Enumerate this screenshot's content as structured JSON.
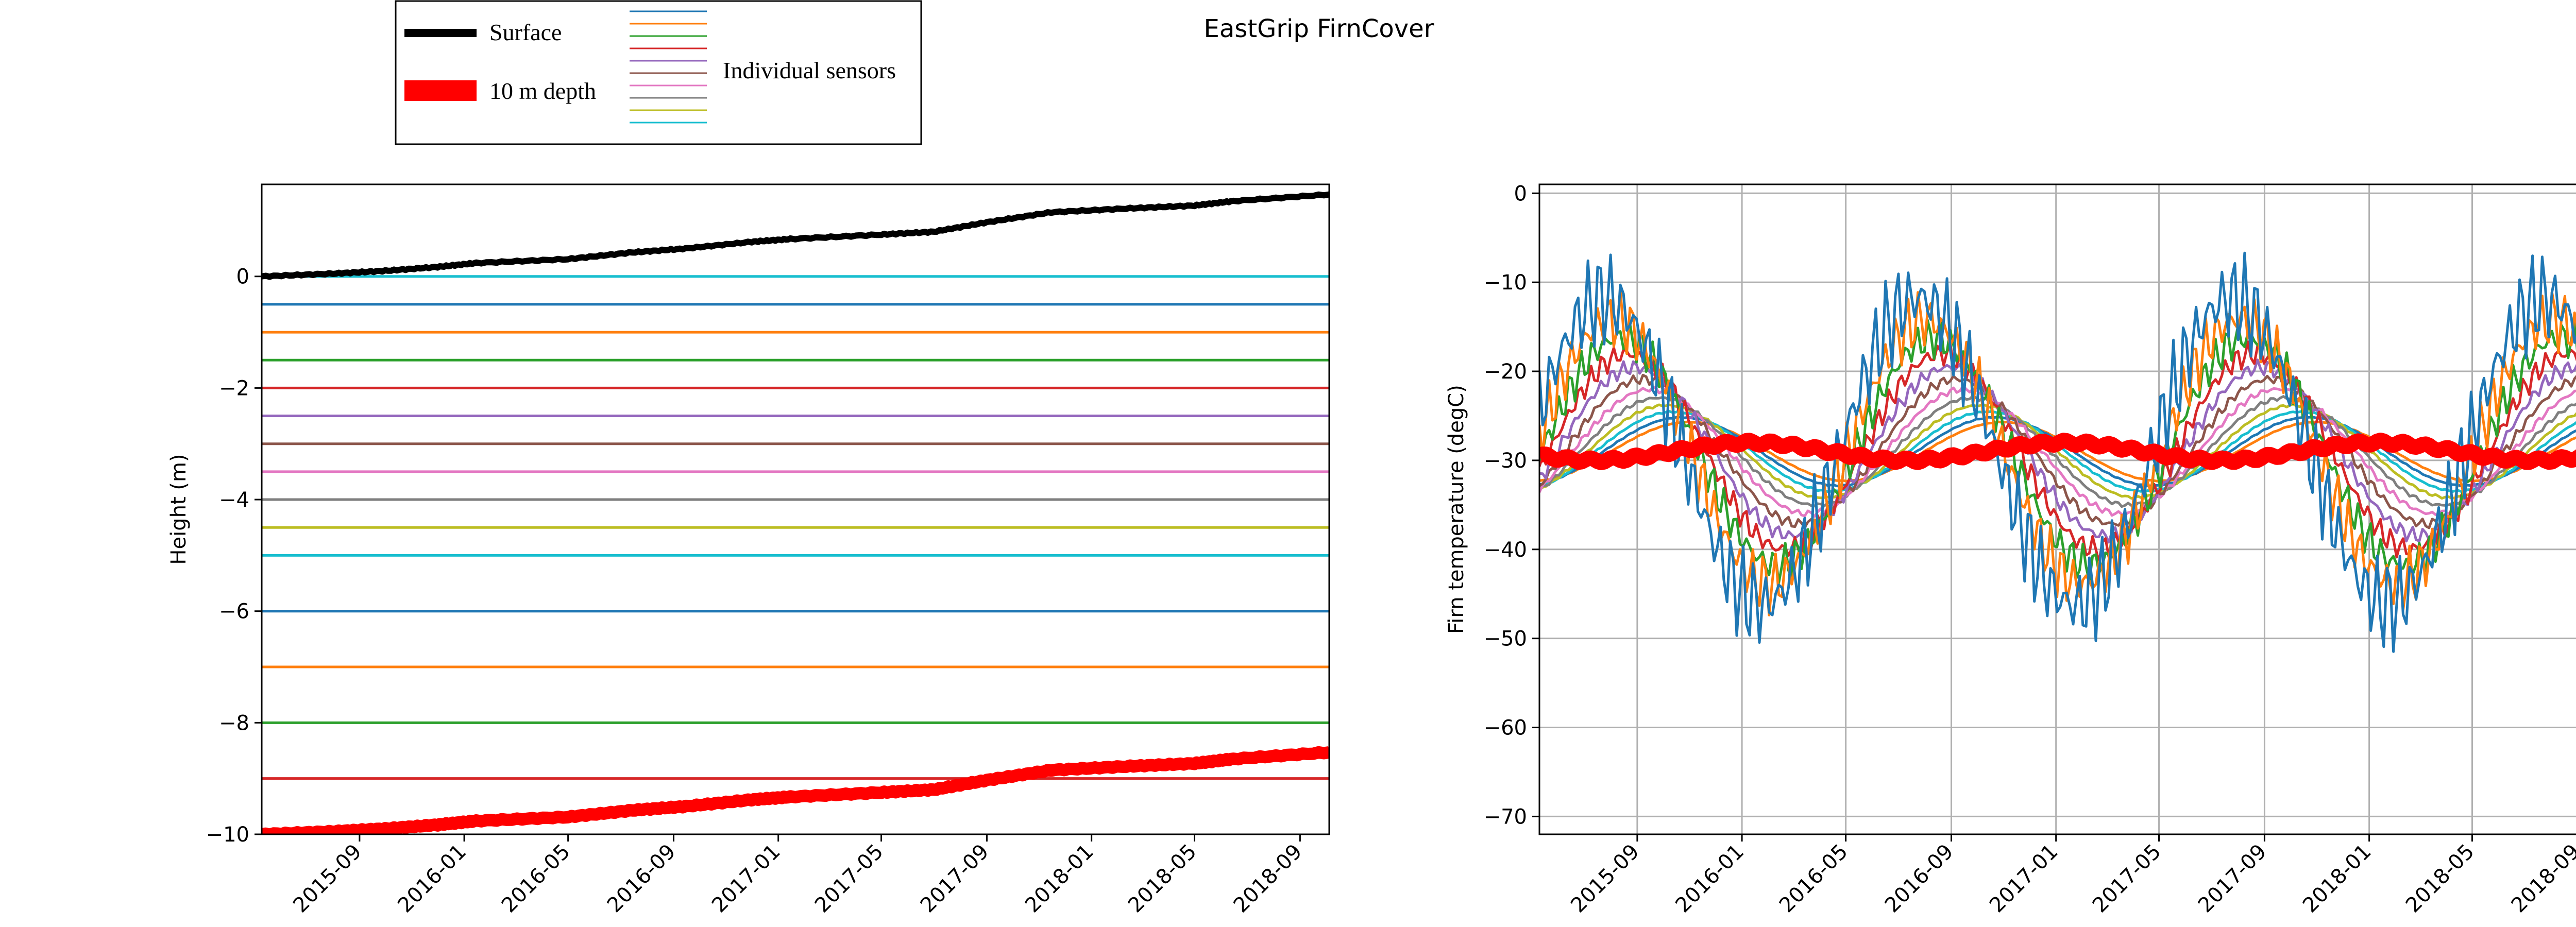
{
  "figure": {
    "title": "EastGrip FirnCover"
  },
  "legend": {
    "surface_label": "Surface",
    "depth_label": "10 m depth",
    "sensors_label": "Individual sensors",
    "surface_color": "#000000",
    "depth_color": "#ff0000",
    "sensor_colors": [
      "#1f77b4",
      "#ff7f0e",
      "#2ca02c",
      "#d62728",
      "#9467bd",
      "#8c564b",
      "#e377c2",
      "#7f7f7f",
      "#bcbd22",
      "#17becf"
    ]
  },
  "colors": {
    "grid": "#b0b0b0",
    "sensor_palette": [
      "#17becf",
      "#1f77b4",
      "#ff7f0e",
      "#2ca02c",
      "#d62728",
      "#9467bd",
      "#8c564b",
      "#e377c2",
      "#7f7f7f",
      "#bcbd22",
      "#17becf",
      "#1f77b4",
      "#ff7f0e",
      "#2ca02c",
      "#d62728"
    ]
  },
  "chart_data": [
    {
      "type": "line",
      "title": "",
      "xlabel": "",
      "ylabel": "Height (m)",
      "xlim": [
        "2015-05-10",
        "2018-10-05"
      ],
      "ylim": [
        -10,
        1.65
      ],
      "grid": false,
      "x_ticks": [
        "2015-09",
        "2016-01",
        "2016-05",
        "2016-09",
        "2017-01",
        "2017-05",
        "2017-09",
        "2018-01",
        "2018-05",
        "2018-09"
      ],
      "y_ticks": [
        -10,
        -8,
        -6,
        -4,
        -2,
        0
      ],
      "surface": {
        "name": "Surface",
        "points": [
          [
            "2015-05-10",
            0.0
          ],
          [
            "2015-08-01",
            0.05
          ],
          [
            "2015-10-01",
            0.1
          ],
          [
            "2015-12-01",
            0.17
          ],
          [
            "2016-01-15",
            0.24
          ],
          [
            "2016-05-01",
            0.31
          ],
          [
            "2016-07-15",
            0.43
          ],
          [
            "2016-09-15",
            0.5
          ],
          [
            "2016-12-01",
            0.62
          ],
          [
            "2017-01-15",
            0.67
          ],
          [
            "2017-05-01",
            0.75
          ],
          [
            "2017-07-01",
            0.8
          ],
          [
            "2017-09-01",
            0.97
          ],
          [
            "2017-11-15",
            1.15
          ],
          [
            "2018-02-15",
            1.22
          ],
          [
            "2018-05-01",
            1.27
          ],
          [
            "2018-06-15",
            1.35
          ],
          [
            "2018-10-05",
            1.47
          ]
        ]
      },
      "depth_10m": {
        "name": "10 m depth",
        "points": [
          [
            "2015-05-10",
            -10.0
          ],
          [
            "2015-08-01",
            -9.95
          ],
          [
            "2015-10-01",
            -9.9
          ],
          [
            "2015-12-01",
            -9.83
          ],
          [
            "2016-01-15",
            -9.76
          ],
          [
            "2016-05-01",
            -9.69
          ],
          [
            "2016-07-15",
            -9.57
          ],
          [
            "2016-09-15",
            -9.5
          ],
          [
            "2016-12-01",
            -9.38
          ],
          [
            "2017-01-15",
            -9.33
          ],
          [
            "2017-05-01",
            -9.25
          ],
          [
            "2017-07-01",
            -9.2
          ],
          [
            "2017-09-01",
            -9.03
          ],
          [
            "2017-11-15",
            -8.85
          ],
          [
            "2018-02-15",
            -8.78
          ],
          [
            "2018-05-01",
            -8.73
          ],
          [
            "2018-06-15",
            -8.65
          ],
          [
            "2018-10-05",
            -8.53
          ]
        ]
      },
      "sensor_depths": [
        0,
        -0.5,
        -1.0,
        -1.5,
        -2.0,
        -2.5,
        -3.0,
        -3.5,
        -4.0,
        -4.5,
        -5.0,
        -6.0,
        -7.0,
        -8.0,
        -9.0
      ]
    },
    {
      "type": "line",
      "title": "",
      "xlabel": "",
      "ylabel": "Firn temperature (degC)",
      "xlim": [
        "2015-05-10",
        "2018-10-05"
      ],
      "ylim": [
        -72,
        1
      ],
      "grid": true,
      "x_ticks": [
        "2015-09",
        "2016-01",
        "2016-05",
        "2016-09",
        "2017-01",
        "2017-05",
        "2017-09",
        "2018-01",
        "2018-05",
        "2018-09"
      ],
      "y_ticks": [
        -70,
        -60,
        -50,
        -40,
        -30,
        -20,
        -10,
        0
      ],
      "series_model": {
        "mean_temperature": -29,
        "annual_peak_date": "2016-07-15",
        "surface_amplitude": 20,
        "damping_per_m": 0.3,
        "lag_days_per_m": 18,
        "sensor_depths_m": [
          0.5,
          1.0,
          1.5,
          2.0,
          2.5,
          3.0,
          3.5,
          4.0,
          4.5,
          5.0,
          5.5,
          6.0
        ],
        "depth_10m_series": "10 m depth"
      }
    }
  ]
}
